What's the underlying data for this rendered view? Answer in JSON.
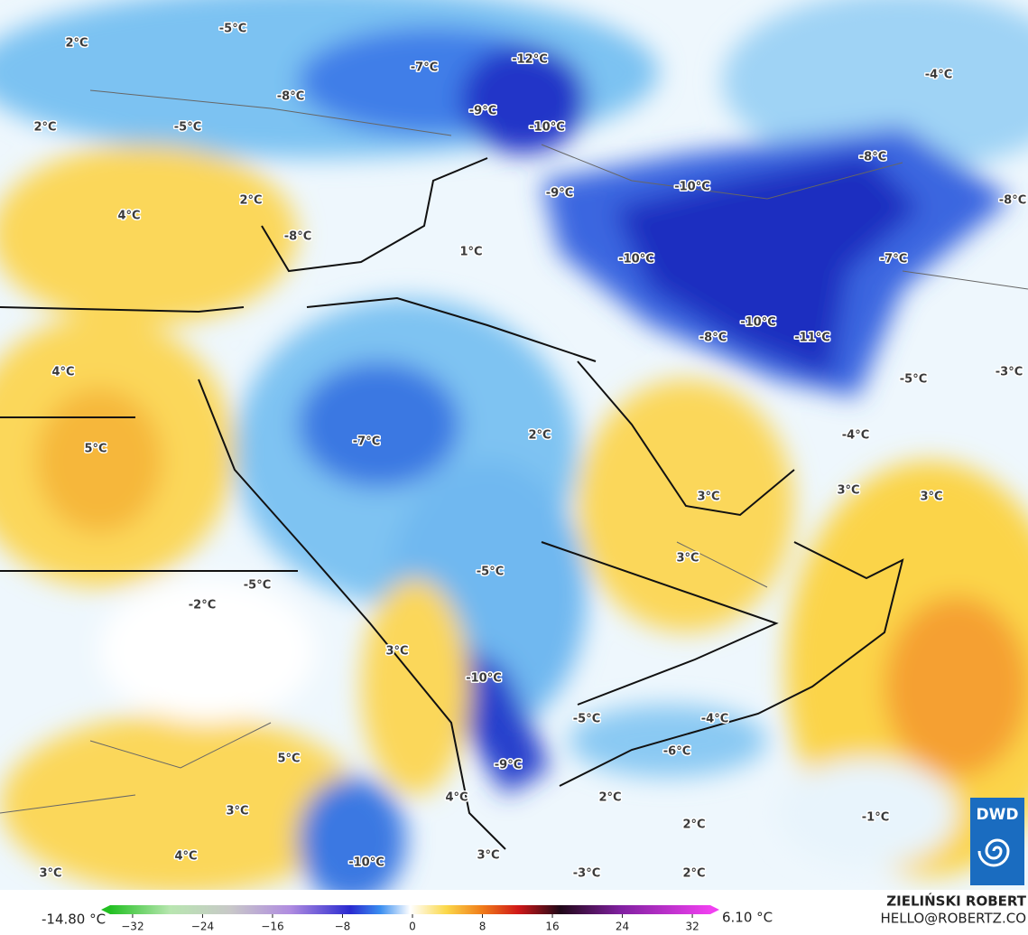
{
  "map": {
    "labels": [
      "2°C",
      "-5°C",
      "-7°C",
      "-12°C",
      "-8°C",
      "-9°C",
      "-5°C",
      "-10°C",
      "-4°C",
      "2°C",
      "-8°C",
      "-10°C",
      "-9°C",
      "-8°C",
      "4°C",
      "2°C",
      "-8°C",
      "1°C",
      "-10°C",
      "-7°C",
      "-10°C",
      "-11°C",
      "-8°C",
      "4°C",
      "-3°C",
      "-5°C",
      "-7°C",
      "2°C",
      "-4°C",
      "5°C",
      "3°C",
      "3°C",
      "3°C",
      "3°C",
      "-5°C",
      "-5°C",
      "-2°C",
      "3°C",
      "-10°C",
      "-5°C",
      "-4°C",
      "-6°C",
      "5°C",
      "-9°C",
      "4°C",
      "2°C",
      "-1°C",
      "2°C",
      "3°C",
      "4°C",
      "-10°C",
      "3°C",
      "2°C",
      "-3°C",
      "3°C"
    ]
  },
  "colorbar": {
    "min_label": "-14.80 °C",
    "max_label": "6.10 °C",
    "ticks": [
      {
        "value": -32,
        "label": "−32"
      },
      {
        "value": -24,
        "label": "−24"
      },
      {
        "value": -16,
        "label": "−16"
      },
      {
        "value": -8,
        "label": "−8"
      },
      0,
      8,
      16,
      24,
      32
    ]
  },
  "credits": {
    "author": "ZIELIŃSKI ROBERT",
    "email": "HELLO@ROBERTZ.CO",
    "logo": "DWD"
  }
}
